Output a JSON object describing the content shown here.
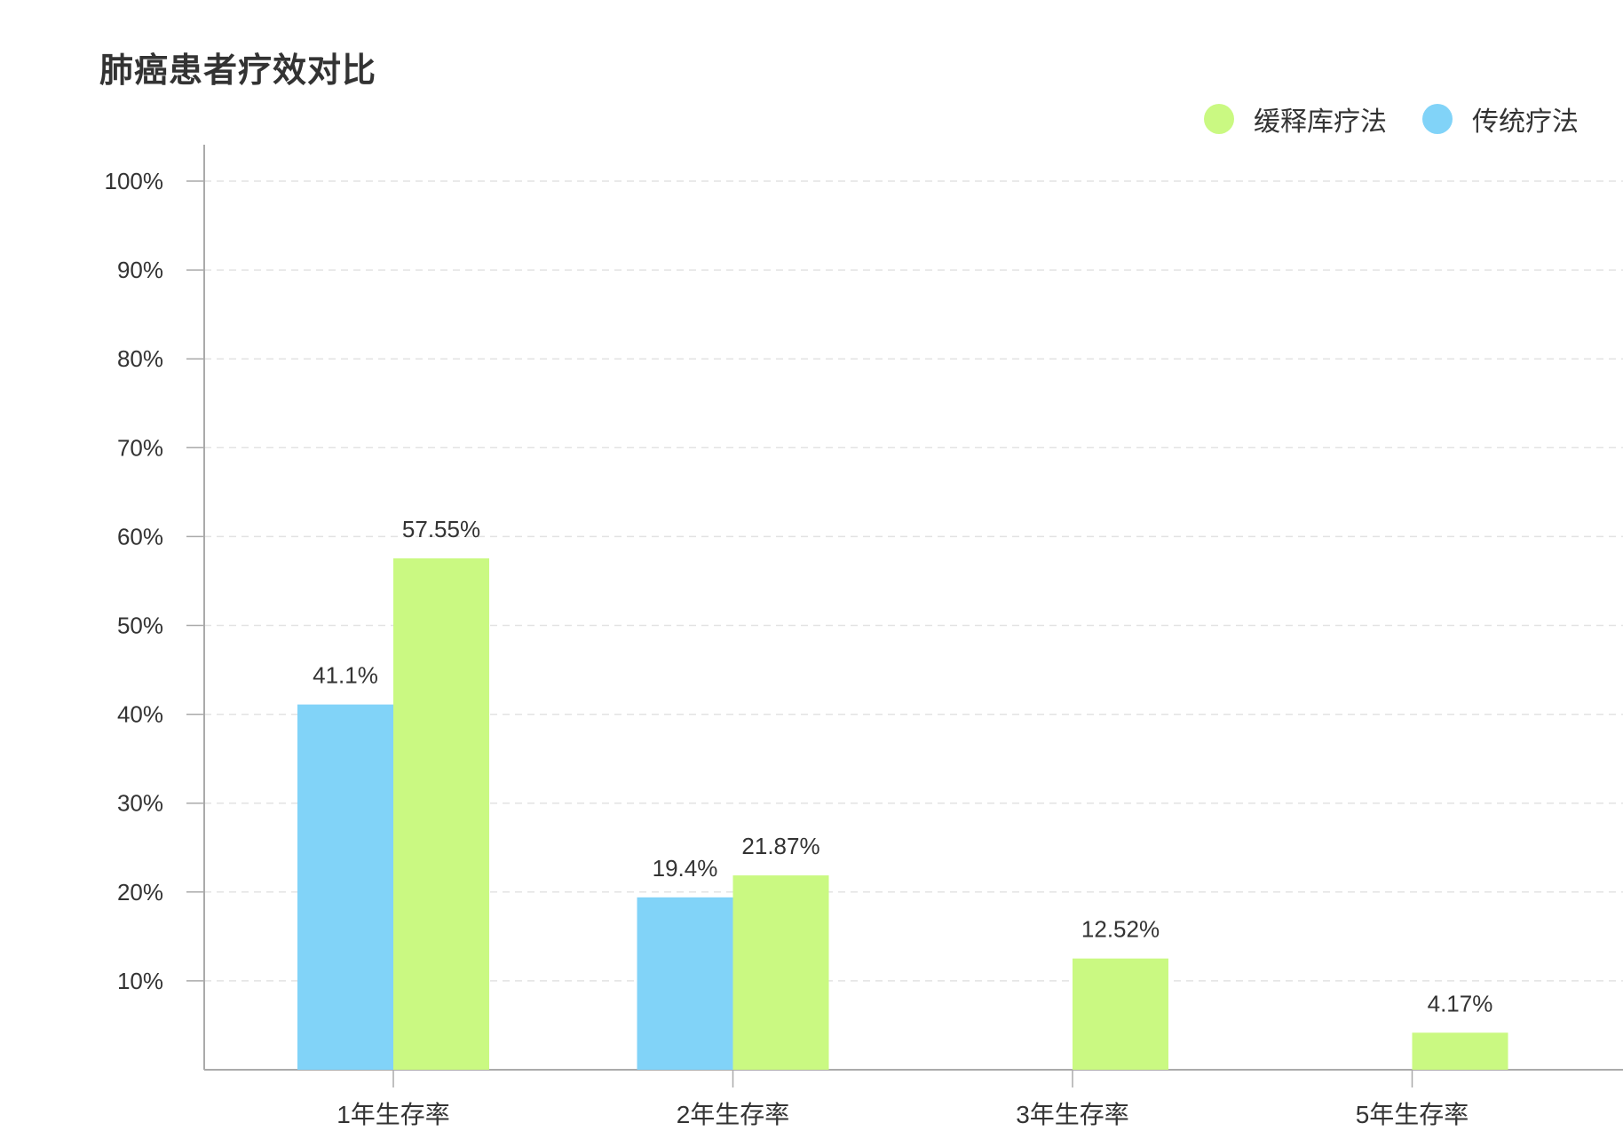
{
  "chart_data": {
    "type": "bar",
    "title": "肺癌患者疗效对比",
    "categories": [
      "1年生存率",
      "2年生存率",
      "3年生存率",
      "5年生存率"
    ],
    "series": [
      {
        "name": "传统疗法",
        "color": "#81d3f8",
        "values": [
          41.1,
          19.4,
          null,
          null
        ],
        "labels": [
          "41.1%",
          "19.4%",
          "",
          ""
        ]
      },
      {
        "name": "缓释库疗法",
        "color": "#caf982",
        "values": [
          57.55,
          21.87,
          12.52,
          4.17
        ],
        "labels": [
          "57.55%",
          "21.87%",
          "12.52%",
          "4.17%"
        ]
      }
    ],
    "yticks": [
      "10%",
      "20%",
      "30%",
      "40%",
      "50%",
      "60%",
      "70%",
      "80%",
      "90%",
      "100%"
    ],
    "ylim": [
      0,
      100
    ],
    "grid": true,
    "legend_position": "top-right",
    "legend_order": [
      "缓释库疗法",
      "传统疗法"
    ]
  }
}
